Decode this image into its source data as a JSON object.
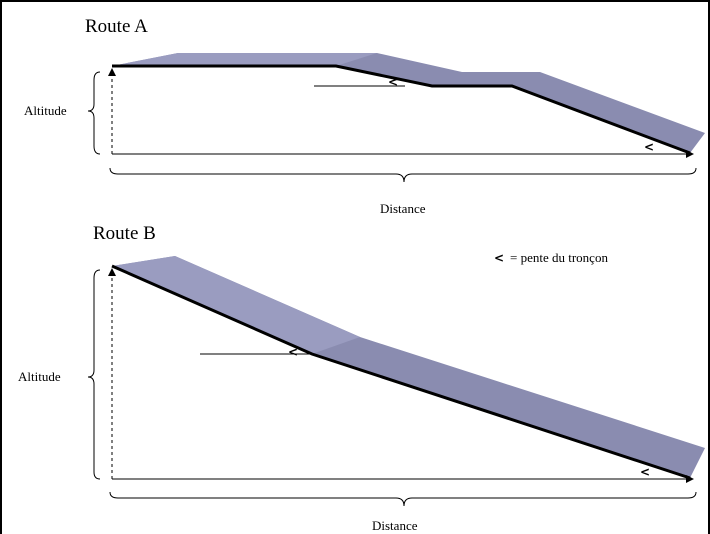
{
  "routes": [
    {
      "title": "Route A",
      "y_label": "Altitude",
      "x_label": "Distance"
    },
    {
      "title": "Route B",
      "y_label": "Altitude",
      "x_label": "Distance"
    }
  ],
  "legend": {
    "symbol": "<",
    "text": "= pente du tronçon"
  },
  "slope_symbol": "<",
  "colors": {
    "road_fill": "#8a8cb0",
    "road_top": "#9a9cc0",
    "line": "#000000"
  }
}
